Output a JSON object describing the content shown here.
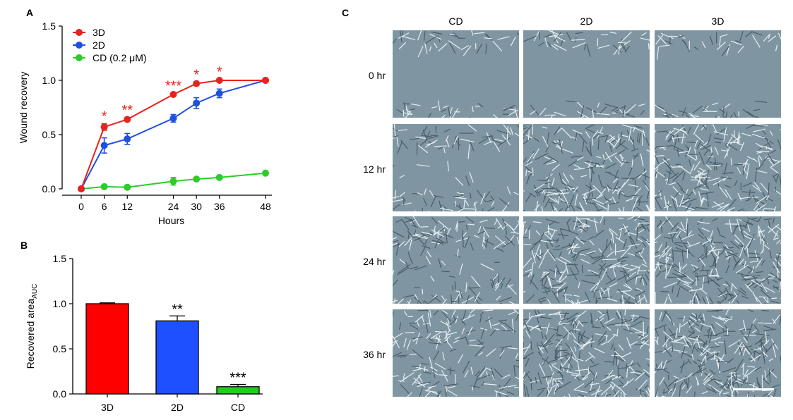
{
  "panels": {
    "a": "A",
    "b": "B",
    "c": "C"
  },
  "chart_data": [
    {
      "type": "line",
      "panel": "A",
      "xlabel": "Hours",
      "ylabel": "Wound recovery",
      "x": [
        "0",
        "6",
        "12",
        "24",
        "30",
        "36",
        "48"
      ],
      "ylim": [
        0,
        1.5
      ],
      "yticks": [
        "0.0",
        "0.5",
        "1.0",
        "1.5"
      ],
      "legend_position": "top-left",
      "series": [
        {
          "name": "3D",
          "color": "#e8231f",
          "values": [
            0,
            0.57,
            0.64,
            0.87,
            0.97,
            1.0,
            1.0
          ],
          "errors": [
            0,
            0.03,
            0.015,
            0.01,
            0.015,
            0.01,
            0
          ]
        },
        {
          "name": "2D",
          "color": "#1f50e0",
          "values": [
            0,
            0.4,
            0.46,
            0.65,
            0.79,
            0.88,
            1.0
          ],
          "errors": [
            0,
            0.07,
            0.05,
            0.035,
            0.05,
            0.04,
            0
          ]
        },
        {
          "name": "CD (0.2 μM)",
          "color": "#2ccc2c",
          "values": [
            0,
            0.02,
            0.015,
            0.07,
            0.09,
            0.105,
            0.145
          ],
          "errors": [
            0,
            0.01,
            0.01,
            0.035,
            0.01,
            0.01,
            0.01
          ]
        }
      ],
      "annotations": [
        {
          "x_index": 1,
          "text": "*"
        },
        {
          "x_index": 2,
          "text": "**"
        },
        {
          "x_index": 3,
          "text": "***"
        },
        {
          "x_index": 4,
          "text": "*"
        },
        {
          "x_index": 5,
          "text": "*"
        }
      ],
      "annotation_color": "#e8231f"
    },
    {
      "type": "bar",
      "panel": "B",
      "ylabel": "Recovered area",
      "ylabel_subscript": "AUC",
      "categories": [
        "3D",
        "2D",
        "CD"
      ],
      "values": [
        1.0,
        0.81,
        0.08
      ],
      "errors": [
        0.01,
        0.055,
        0.025
      ],
      "colors": [
        "#ff0000",
        "#1f50ff",
        "#22cc22"
      ],
      "annotations": [
        "",
        "**",
        "***"
      ],
      "ylim": [
        0,
        1.5
      ],
      "yticks": [
        "0.0",
        "0.5",
        "1.0",
        "1.5"
      ]
    }
  ],
  "micrographs": {
    "columns": [
      "CD",
      "2D",
      "3D"
    ],
    "rows": [
      "0 hr",
      "12 hr",
      "24 hr",
      "36 hr"
    ],
    "closure": [
      [
        0.0,
        0.0,
        0.0
      ],
      [
        0.2,
        0.8,
        0.88
      ],
      [
        0.45,
        0.92,
        1.0
      ],
      [
        0.5,
        1.0,
        1.0
      ]
    ]
  }
}
